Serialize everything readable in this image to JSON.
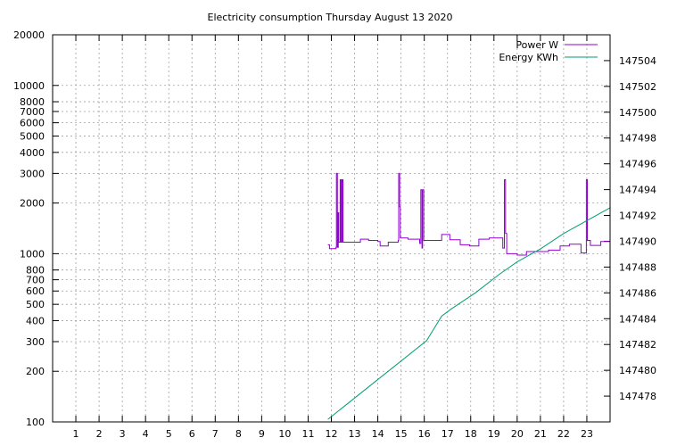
{
  "chart_data": {
    "type": "line",
    "title": "Electricity consumption Thursday August 13 2020",
    "x_ticks": [
      1,
      2,
      3,
      4,
      5,
      6,
      7,
      8,
      9,
      10,
      11,
      12,
      13,
      14,
      15,
      16,
      17,
      18,
      19,
      20,
      21,
      22,
      23
    ],
    "xlim": [
      0,
      24
    ],
    "y_left": {
      "scale": "log",
      "ylim": [
        100,
        20000
      ],
      "ticks": [
        100,
        200,
        300,
        400,
        500,
        600,
        700,
        800,
        1000,
        2000,
        3000,
        4000,
        5000,
        6000,
        7000,
        8000,
        10000,
        20000
      ]
    },
    "y_right": {
      "scale": "linear",
      "ylim": [
        147476,
        147506
      ],
      "ticks": [
        147478,
        147480,
        147482,
        147484,
        147486,
        147488,
        147490,
        147492,
        147494,
        147496,
        147498,
        147500,
        147502,
        147504
      ]
    },
    "grid": true,
    "legend_position": "top-right",
    "series": [
      {
        "name": "Power W",
        "axis": "left",
        "color": "#9400d3",
        "step": true,
        "points": [
          [
            11.85,
            1130
          ],
          [
            11.92,
            1070
          ],
          [
            12.2,
            1090
          ],
          [
            12.22,
            3000
          ],
          [
            12.26,
            1090
          ],
          [
            12.3,
            1750
          ],
          [
            12.32,
            1170
          ],
          [
            12.38,
            2750
          ],
          [
            12.42,
            1170
          ],
          [
            12.46,
            2750
          ],
          [
            12.5,
            1170
          ],
          [
            13.2,
            1170
          ],
          [
            13.25,
            1220
          ],
          [
            13.6,
            1200
          ],
          [
            14.0,
            1180
          ],
          [
            14.1,
            1110
          ],
          [
            14.45,
            1170
          ],
          [
            14.88,
            1200
          ],
          [
            14.9,
            3000
          ],
          [
            14.94,
            1900
          ],
          [
            14.97,
            1240
          ],
          [
            15.3,
            1220
          ],
          [
            15.8,
            1150
          ],
          [
            15.85,
            2400
          ],
          [
            15.9,
            1080
          ],
          [
            15.93,
            2400
          ],
          [
            15.98,
            1200
          ],
          [
            16.7,
            1200
          ],
          [
            16.75,
            1300
          ],
          [
            17.1,
            1210
          ],
          [
            17.55,
            1130
          ],
          [
            17.95,
            1110
          ],
          [
            18.35,
            1220
          ],
          [
            18.8,
            1240
          ],
          [
            19.35,
            1240
          ],
          [
            19.38,
            1080
          ],
          [
            19.45,
            2750
          ],
          [
            19.5,
            1320
          ],
          [
            19.55,
            1000
          ],
          [
            20.0,
            980
          ],
          [
            20.4,
            1030
          ],
          [
            20.9,
            1030
          ],
          [
            21.35,
            1050
          ],
          [
            21.85,
            1110
          ],
          [
            22.25,
            1140
          ],
          [
            22.75,
            1010
          ],
          [
            22.98,
            2750
          ],
          [
            23.02,
            1200
          ],
          [
            23.15,
            1120
          ],
          [
            23.6,
            1180
          ],
          [
            24.0,
            1180
          ]
        ]
      },
      {
        "name": "Energy KWh",
        "axis": "right",
        "color": "#009e73",
        "step": false,
        "points": [
          [
            11.85,
            147476.2
          ],
          [
            16.1,
            147482.3
          ],
          [
            16.75,
            147484.2
          ],
          [
            17.2,
            147484.8
          ],
          [
            18.2,
            147486.0
          ],
          [
            19.2,
            147487.4
          ],
          [
            20.0,
            147488.4
          ],
          [
            21.0,
            147489.4
          ],
          [
            22.0,
            147490.6
          ],
          [
            23.0,
            147491.6
          ],
          [
            24.0,
            147492.6
          ]
        ]
      }
    ]
  }
}
